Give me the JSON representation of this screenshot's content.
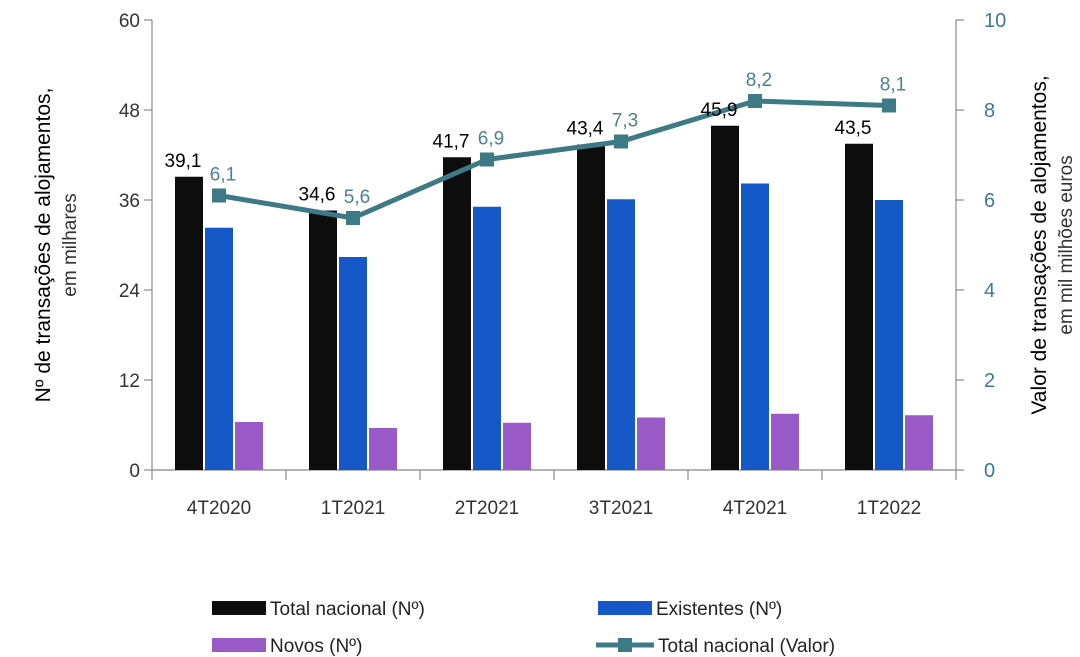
{
  "chart_data": {
    "type": "bar+line",
    "categories": [
      "4T2020",
      "1T2021",
      "2T2021",
      "3T2021",
      "4T2021",
      "1T2022"
    ],
    "series": [
      {
        "name": "Total nacional (Nº)",
        "type": "bar",
        "axis": "left",
        "color": "#0d0d0d",
        "values": [
          39.1,
          34.6,
          41.7,
          43.4,
          45.9,
          43.5
        ],
        "labels": [
          "39,1",
          "34,6",
          "41,7",
          "43,4",
          "45,9",
          "43,5"
        ]
      },
      {
        "name": "Existentes (Nº)",
        "type": "bar",
        "axis": "left",
        "color": "#1558c8",
        "values": [
          32.3,
          28.4,
          35.1,
          36.1,
          38.2,
          36.0
        ]
      },
      {
        "name": "Novos (Nº)",
        "type": "bar",
        "axis": "left",
        "color": "#9a5ac8",
        "values": [
          6.4,
          5.6,
          6.3,
          7.0,
          7.5,
          7.3
        ]
      },
      {
        "name": "Total nacional (Valor)",
        "type": "line",
        "axis": "right",
        "color": "#3e7a85",
        "values": [
          6.1,
          5.6,
          6.9,
          7.3,
          8.2,
          8.1
        ],
        "labels": [
          "6,1",
          "5,6",
          "6,9",
          "7,3",
          "8,2",
          "8,1"
        ]
      }
    ],
    "y_left": {
      "label": "Nº  de transações de alojamentos,",
      "sublabel": "em milhares",
      "min": 0,
      "max": 60,
      "ticks": [
        0,
        12,
        24,
        36,
        48,
        60
      ]
    },
    "y_right": {
      "label": "Valor de transações de alojamentos,",
      "sublabel": "em mil milhões euros",
      "min": 0,
      "max": 10,
      "ticks": [
        0,
        2,
        4,
        6,
        8,
        10
      ],
      "color": "#3e7a8c"
    },
    "grid": false,
    "legend": {
      "position": "bottom",
      "columns": 2
    }
  }
}
